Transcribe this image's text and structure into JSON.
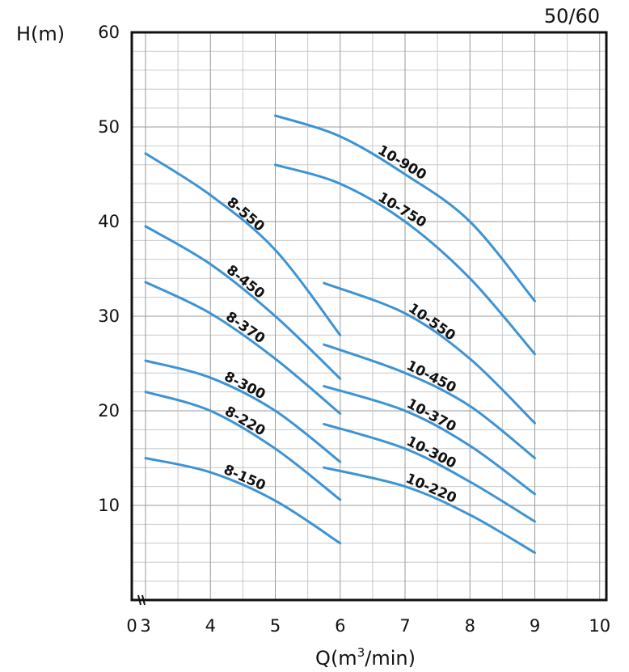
{
  "chart_data": {
    "type": "line",
    "corner_label": "50/60",
    "ylabel": "H(m)",
    "xlabel_prefix": "Q(m",
    "xlabel_sup": "3",
    "xlabel_suffix": "/min)",
    "xlim": [
      0,
      10
    ],
    "ylim": [
      0,
      60
    ],
    "x_break_after": 0,
    "x_ticks": [
      0,
      3,
      4,
      5,
      6,
      7,
      8,
      9,
      10
    ],
    "y_ticks": [
      10,
      20,
      30,
      40,
      50,
      60
    ],
    "grid": true,
    "series_color": "#3d93d3",
    "series": [
      {
        "name": "8-150",
        "points": [
          [
            3,
            15.0
          ],
          [
            4,
            13.5
          ],
          [
            5,
            10.5
          ],
          [
            6,
            6.0
          ]
        ]
      },
      {
        "name": "8-220",
        "points": [
          [
            3,
            22.0
          ],
          [
            4,
            20.0
          ],
          [
            5,
            16.0
          ],
          [
            6,
            10.6
          ]
        ]
      },
      {
        "name": "8-300",
        "points": [
          [
            3,
            25.3
          ],
          [
            4,
            23.5
          ],
          [
            5,
            20.0
          ],
          [
            6,
            14.6
          ]
        ]
      },
      {
        "name": "8-370",
        "points": [
          [
            3,
            33.6
          ],
          [
            4,
            30.3
          ],
          [
            5,
            25.5
          ],
          [
            6,
            19.7
          ]
        ]
      },
      {
        "name": "8-450",
        "points": [
          [
            3,
            39.5
          ],
          [
            4,
            35.5
          ],
          [
            5,
            30.0
          ],
          [
            6,
            23.4
          ]
        ]
      },
      {
        "name": "8-550",
        "points": [
          [
            3,
            47.2
          ],
          [
            4,
            42.8
          ],
          [
            5,
            37.0
          ],
          [
            6,
            28.0
          ]
        ]
      },
      {
        "name": "10-220",
        "points": [
          [
            5.75,
            14.0
          ],
          [
            7,
            12.0
          ],
          [
            8,
            9.0
          ],
          [
            9,
            5.0
          ]
        ]
      },
      {
        "name": "10-300",
        "points": [
          [
            5.75,
            18.6
          ],
          [
            7,
            16.0
          ],
          [
            8,
            12.5
          ],
          [
            9,
            8.3
          ]
        ]
      },
      {
        "name": "10-370",
        "points": [
          [
            5.75,
            22.6
          ],
          [
            7,
            20.0
          ],
          [
            8,
            16.3
          ],
          [
            9,
            11.2
          ]
        ]
      },
      {
        "name": "10-450",
        "points": [
          [
            5.75,
            27.0
          ],
          [
            7,
            24.0
          ],
          [
            8,
            20.5
          ],
          [
            9,
            15.0
          ]
        ]
      },
      {
        "name": "10-550",
        "points": [
          [
            5.75,
            33.5
          ],
          [
            7,
            30.3
          ],
          [
            8,
            25.5
          ],
          [
            9,
            18.7
          ]
        ]
      },
      {
        "name": "10-750",
        "points": [
          [
            5,
            46.0
          ],
          [
            6,
            44.0
          ],
          [
            7,
            40.0
          ],
          [
            8,
            34.0
          ],
          [
            9,
            26.0
          ]
        ]
      },
      {
        "name": "10-900",
        "points": [
          [
            5,
            51.2
          ],
          [
            6,
            49.0
          ],
          [
            7,
            45.0
          ],
          [
            8,
            40.0
          ],
          [
            9,
            31.6
          ]
        ]
      }
    ]
  }
}
